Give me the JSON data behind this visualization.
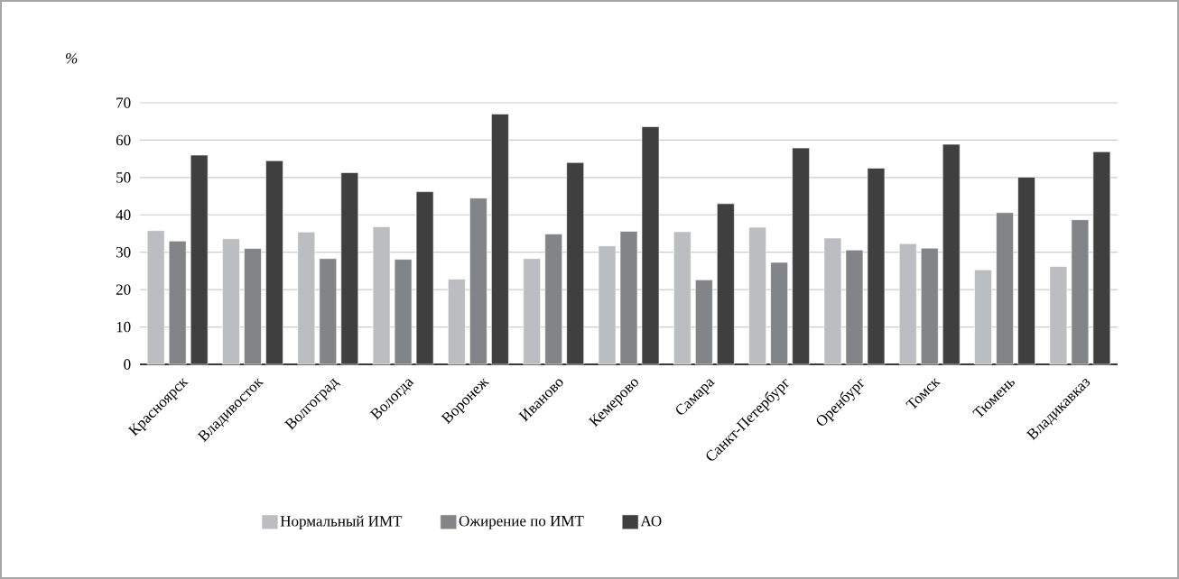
{
  "chart_data": {
    "type": "bar",
    "ylabel": "%",
    "categories": [
      "Красноярск",
      "Владивосток",
      "Волгоград",
      "Вологда",
      "Воронеж",
      "Иваново",
      "Кемерово",
      "Самара",
      "Санкт-Петербург",
      "Оренбург",
      "Томск",
      "Тюмень",
      "Владикавказ"
    ],
    "series": [
      {
        "name": "Нормальный ИМТ",
        "color": "#bcbdc0",
        "values": [
          35.8,
          33.6,
          35.4,
          36.8,
          22.8,
          28.3,
          31.7,
          35.5,
          36.7,
          33.8,
          32.3,
          25.3,
          26.2
        ]
      },
      {
        "name": "Ожирение по ИМТ",
        "color": "#838487",
        "values": [
          33.0,
          31.0,
          28.3,
          28.1,
          44.5,
          34.9,
          35.6,
          22.6,
          27.3,
          30.6,
          31.1,
          40.6,
          38.7
        ]
      },
      {
        "name": "АО",
        "color": "#3f3f3f",
        "values": [
          56.0,
          54.5,
          51.3,
          46.2,
          67.0,
          54.0,
          63.6,
          43.0,
          57.9,
          52.5,
          58.9,
          50.1,
          56.9
        ]
      }
    ],
    "ylim": [
      0,
      70
    ],
    "yticks": [
      0,
      10,
      20,
      30,
      40,
      50,
      60,
      70
    ],
    "grid": "y",
    "legend": "bottom"
  }
}
